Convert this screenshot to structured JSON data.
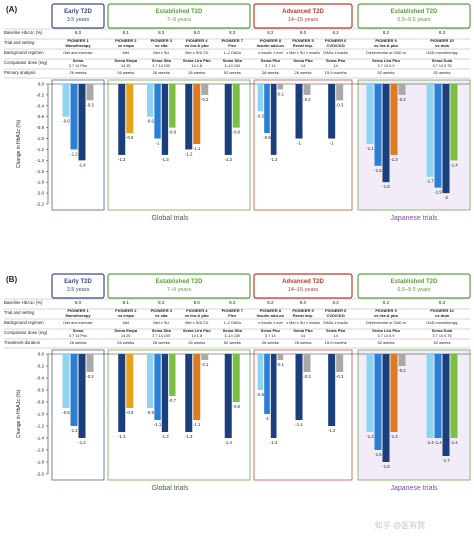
{
  "watermark": "知乎 @医有我",
  "row_labels": [
    "Baseline HbA1c (%)",
    "Trial and setting",
    "Background regimen",
    "Comparator dose (mg)",
    "Primary analysis"
  ],
  "row_labels_b": [
    "Baseline HbA1c (%)",
    "Trial and setting",
    "Background regimen",
    "Comparator dose (mg)",
    "Treatment duration"
  ],
  "groups": [
    {
      "title": "Early T2D",
      "sub": "3.5 years",
      "color": "#3a4a8c"
    },
    {
      "title": "Established T2D",
      "sub": "7–9 years",
      "color": "#5aa03c"
    },
    {
      "title": "Advanced T2D",
      "sub": "14–15 years",
      "color": "#c0392b"
    },
    {
      "title": "Established T2D",
      "sub": "6.5–9.5 years",
      "color": "#5aa03c"
    }
  ],
  "footer": {
    "global": "Global trials",
    "japanese": "Japanese trials"
  },
  "trials": [
    {
      "hba1c": "8.0",
      "name": "PIONEER 1 Monotherapy",
      "bg": "Diet and exercise",
      "comp": "Sema",
      "dose": [
        "3",
        "7",
        "14",
        "Pbo"
      ],
      "dur": "26 weeks"
    },
    {
      "hba1c": "8.1",
      "name": "PIONEER 2 vs empa",
      "bg": "Met",
      "comp": "Sema Empa",
      "dose": [
        "14",
        "25"
      ],
      "dur": "26 weeks"
    },
    {
      "hba1c": "8.3",
      "name": "PIONEER 3 vs sita",
      "bg": "Met ± SU",
      "comp": "Sema Sita",
      "dose": [
        "3",
        "7",
        "14",
        "100"
      ],
      "dur": "26 weeks"
    },
    {
      "hba1c": "8.0",
      "name": "PIONEER 4 vs lira & pbo",
      "bg": "Met ± SGLT2i",
      "comp": "Sema Lira Pbo",
      "dose": [
        "14",
        "1.8"
      ],
      "dur": "26 weeks"
    },
    {
      "hba1c": "8.3",
      "name": "PIONEER 7 Flex",
      "bg": "1–2 OADs",
      "comp": "Sema Sita",
      "dose": [
        "3–14",
        "100"
      ],
      "dur": "52 weeks"
    },
    {
      "hba1c": "8.2",
      "name": "PIONEER 8 Insulin add-on",
      "bg": "± Insulin ± met",
      "comp": "Sema Pbo",
      "dose": [
        "3",
        "7",
        "14"
      ],
      "dur": "26 weeks"
    },
    {
      "hba1c": "8.0",
      "name": "PIONEER 5 Renal imp.",
      "bg": "± Met ± SU ± insulin",
      "comp": "Sema Pbo",
      "dose": [
        "14"
      ],
      "dur": "26 weeks"
    },
    {
      "hba1c": "8.2",
      "name": "PIONEER 6 CVD/CKD",
      "bg": "OADs ± insulin",
      "comp": "Sema Pbo",
      "dose": [
        "14"
      ],
      "dur": "15.9 months"
    },
    {
      "hba1c": "8.2",
      "name": "PIONEER 9 vs lira & pbo",
      "bg": "Diet/exercise or OAD monotherapy",
      "comp": "Sema Lira Pbo",
      "dose": [
        "3",
        "7",
        "14",
        "0.9"
      ],
      "dur": "52 weeks"
    },
    {
      "hba1c": "8.3",
      "name": "PIONEER 10 vs dula",
      "bg": "OAD monotherapy",
      "comp": "Sema Dula",
      "dose": [
        "3",
        "7",
        "14",
        "0.75"
      ],
      "dur": "52 weeks"
    }
  ],
  "chart_data": [
    {
      "type": "bar",
      "panel": "(A)",
      "ylabel": "Change in HbA1c (%)",
      "yticks": [
        "0.0",
        "-0.2",
        "-0.4",
        "-0.6",
        "-0.8",
        "-1.0",
        "-1.2",
        "-1.4",
        "-1.6",
        "-1.8",
        "-2.0",
        "-2.2"
      ],
      "ylim": [
        -2.2,
        0
      ],
      "bars": [
        [
          {
            "v": -0.6,
            "c": "#8fd3f0"
          },
          {
            "v": -1.2,
            "c": "#2b7fd4"
          },
          {
            "v": -1.4,
            "c": "#1b3f7a"
          },
          {
            "v": -0.3,
            "c": "#a9a9a9"
          }
        ],
        [
          {
            "v": -1.3,
            "c": "#1b3f7a"
          },
          {
            "v": -0.9,
            "c": "#e8a21a"
          }
        ],
        [
          {
            "v": -0.6,
            "c": "#8fd3f0"
          },
          {
            "v": -1.0,
            "c": "#2b7fd4"
          },
          {
            "v": -1.3,
            "c": "#1b3f7a"
          },
          {
            "v": -0.8,
            "c": "#7cc043"
          }
        ],
        [
          {
            "v": -1.2,
            "c": "#1b3f7a"
          },
          {
            "v": -1.1,
            "c": "#e07a20"
          },
          {
            "v": -0.2,
            "c": "#a9a9a9"
          }
        ],
        [
          {
            "v": -1.3,
            "c": "#1b3f7a"
          },
          {
            "v": -0.8,
            "c": "#7cc043"
          }
        ],
        [
          {
            "v": -0.5,
            "c": "#8fd3f0"
          },
          {
            "v": -0.9,
            "c": "#2b7fd4"
          },
          {
            "v": -1.3,
            "c": "#1b3f7a"
          },
          {
            "v": -0.1,
            "c": "#a9a9a9"
          }
        ],
        [
          {
            "v": -1.0,
            "c": "#1b3f7a"
          },
          {
            "v": -0.2,
            "c": "#a9a9a9"
          }
        ],
        [
          {
            "v": -1.0,
            "c": "#1b3f7a"
          },
          {
            "v": -0.3,
            "c": "#a9a9a9"
          }
        ],
        [
          {
            "v": -1.1,
            "c": "#8fd3f0"
          },
          {
            "v": -1.5,
            "c": "#2b7fd4"
          },
          {
            "v": -1.8,
            "c": "#1b3f7a"
          },
          {
            "v": -1.3,
            "c": "#e07a20"
          },
          {
            "v": -0.2,
            "c": "#a9a9a9"
          }
        ],
        [
          {
            "v": -1.7,
            "c": "#8fd3f0"
          },
          {
            "v": -1.9,
            "c": "#2b7fd4"
          },
          {
            "v": -2.0,
            "c": "#1b3f7a"
          },
          {
            "v": -1.4,
            "c": "#7cc043"
          }
        ]
      ]
    },
    {
      "type": "bar",
      "panel": "(B)",
      "ylabel": "Change in HbA1c (%)",
      "yticks": [
        "0.0",
        "-0.2",
        "-0.4",
        "-0.6",
        "-0.8",
        "-1.0",
        "-1.2",
        "-1.4",
        "-1.6",
        "-1.8",
        "-2.0"
      ],
      "ylim": [
        -2.0,
        0
      ],
      "bars": [
        [
          {
            "v": -0.9,
            "c": "#8fd3f0"
          },
          {
            "v": -1.2,
            "c": "#2b7fd4"
          },
          {
            "v": -1.4,
            "c": "#1b3f7a"
          },
          {
            "v": -0.3,
            "c": "#a9a9a9"
          }
        ],
        [
          {
            "v": -1.3,
            "c": "#1b3f7a"
          },
          {
            "v": -0.9,
            "c": "#e8a21a"
          }
        ],
        [
          {
            "v": -0.9,
            "c": "#8fd3f0"
          },
          {
            "v": -1.1,
            "c": "#2b7fd4"
          },
          {
            "v": -1.3,
            "c": "#1b3f7a"
          },
          {
            "v": -0.7,
            "c": "#7cc043"
          }
        ],
        [
          {
            "v": -1.3,
            "c": "#1b3f7a"
          },
          {
            "v": -1.1,
            "c": "#e07a20"
          },
          {
            "v": -0.1,
            "c": "#a9a9a9"
          }
        ],
        [
          {
            "v": -1.4,
            "c": "#1b3f7a"
          },
          {
            "v": -0.8,
            "c": "#7cc043"
          }
        ],
        [
          {
            "v": -0.6,
            "c": "#8fd3f0"
          },
          {
            "v": -1.0,
            "c": "#2b7fd4"
          },
          {
            "v": -1.4,
            "c": "#1b3f7a"
          },
          {
            "v": -0.1,
            "c": "#a9a9a9"
          }
        ],
        [
          {
            "v": -1.1,
            "c": "#1b3f7a"
          },
          {
            "v": -0.3,
            "c": "#a9a9a9"
          }
        ],
        [
          {
            "v": -1.2,
            "c": "#1b3f7a"
          },
          {
            "v": -0.3,
            "c": "#a9a9a9"
          }
        ],
        [
          {
            "v": -1.3,
            "c": "#8fd3f0"
          },
          {
            "v": -1.6,
            "c": "#2b7fd4"
          },
          {
            "v": -1.8,
            "c": "#1b3f7a"
          },
          {
            "v": -1.3,
            "c": "#e07a20"
          },
          {
            "v": -0.2,
            "c": "#a9a9a9"
          }
        ],
        [
          {
            "v": -1.4,
            "c": "#8fd3f0"
          },
          {
            "v": -1.4,
            "c": "#2b7fd4"
          },
          {
            "v": -1.7,
            "c": "#1b3f7a"
          },
          {
            "v": -1.4,
            "c": "#7cc043"
          }
        ]
      ]
    }
  ]
}
